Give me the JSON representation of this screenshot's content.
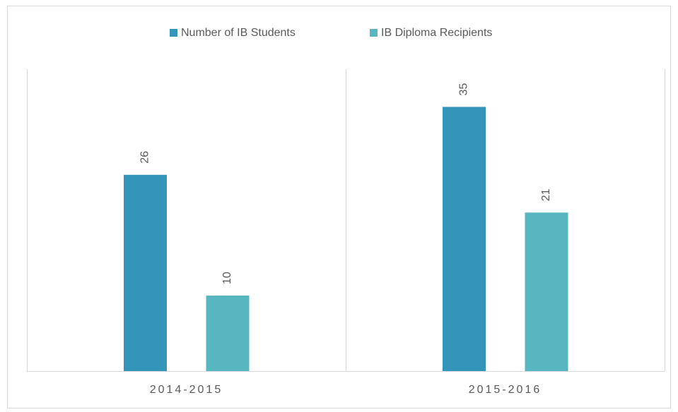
{
  "chart_data": {
    "type": "bar",
    "categories": [
      "2014-2015",
      "2015-2016"
    ],
    "series": [
      {
        "name": "Number of IB Students",
        "color": "#3494ba",
        "values": [
          26,
          35
        ]
      },
      {
        "name": "IB Diploma Recipients",
        "color": "#58b6c0",
        "values": [
          10,
          21
        ]
      }
    ],
    "ylim": [
      0,
      40
    ],
    "legend": "top"
  }
}
